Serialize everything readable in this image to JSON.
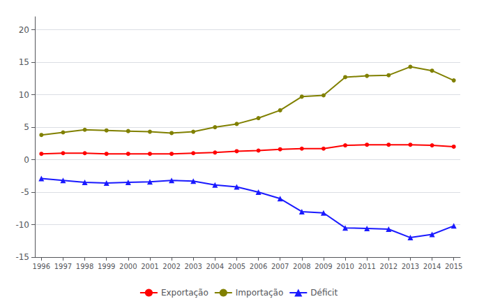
{
  "chart_data": {
    "type": "line",
    "x": [
      1996,
      1997,
      1998,
      1999,
      2000,
      2001,
      2002,
      2003,
      2004,
      2005,
      2006,
      2007,
      2008,
      2009,
      2010,
      2011,
      2012,
      2013,
      2014,
      2015
    ],
    "series": [
      {
        "name": "Exportação",
        "color": "#ff0000",
        "marker": "circle",
        "values": [
          0.9,
          1.0,
          1.0,
          0.9,
          0.9,
          0.9,
          0.9,
          1.0,
          1.1,
          1.3,
          1.4,
          1.6,
          1.7,
          1.7,
          2.2,
          2.3,
          2.3,
          2.3,
          2.2,
          2.0
        ]
      },
      {
        "name": "Importação",
        "color": "#808000",
        "marker": "circle",
        "values": [
          3.8,
          4.2,
          4.6,
          4.5,
          4.4,
          4.3,
          4.1,
          4.3,
          5.0,
          5.5,
          6.4,
          7.6,
          9.7,
          9.9,
          12.7,
          12.9,
          13.0,
          14.3,
          13.7,
          12.2
        ]
      },
      {
        "name": "Déficit",
        "color": "#1a1aff",
        "marker": "triangle",
        "values": [
          -2.9,
          -3.2,
          -3.5,
          -3.6,
          -3.5,
          -3.4,
          -3.2,
          -3.3,
          -3.9,
          -4.2,
          -5.0,
          -6.0,
          -8.0,
          -8.2,
          -10.5,
          -10.6,
          -10.7,
          -12.0,
          -11.5,
          -10.2
        ]
      }
    ],
    "xlim": [
      1995.7,
      2015.3
    ],
    "xticks": [
      1996,
      1997,
      1998,
      1999,
      2000,
      2001,
      2002,
      2003,
      2004,
      2005,
      2006,
      2007,
      2008,
      2009,
      2010,
      2011,
      2012,
      2013,
      2014,
      2015
    ],
    "ylim": [
      -15,
      22
    ],
    "yticks": [
      -15,
      -10,
      -5,
      0,
      5,
      10,
      15,
      20
    ],
    "grid": true,
    "legend": "bottom"
  }
}
